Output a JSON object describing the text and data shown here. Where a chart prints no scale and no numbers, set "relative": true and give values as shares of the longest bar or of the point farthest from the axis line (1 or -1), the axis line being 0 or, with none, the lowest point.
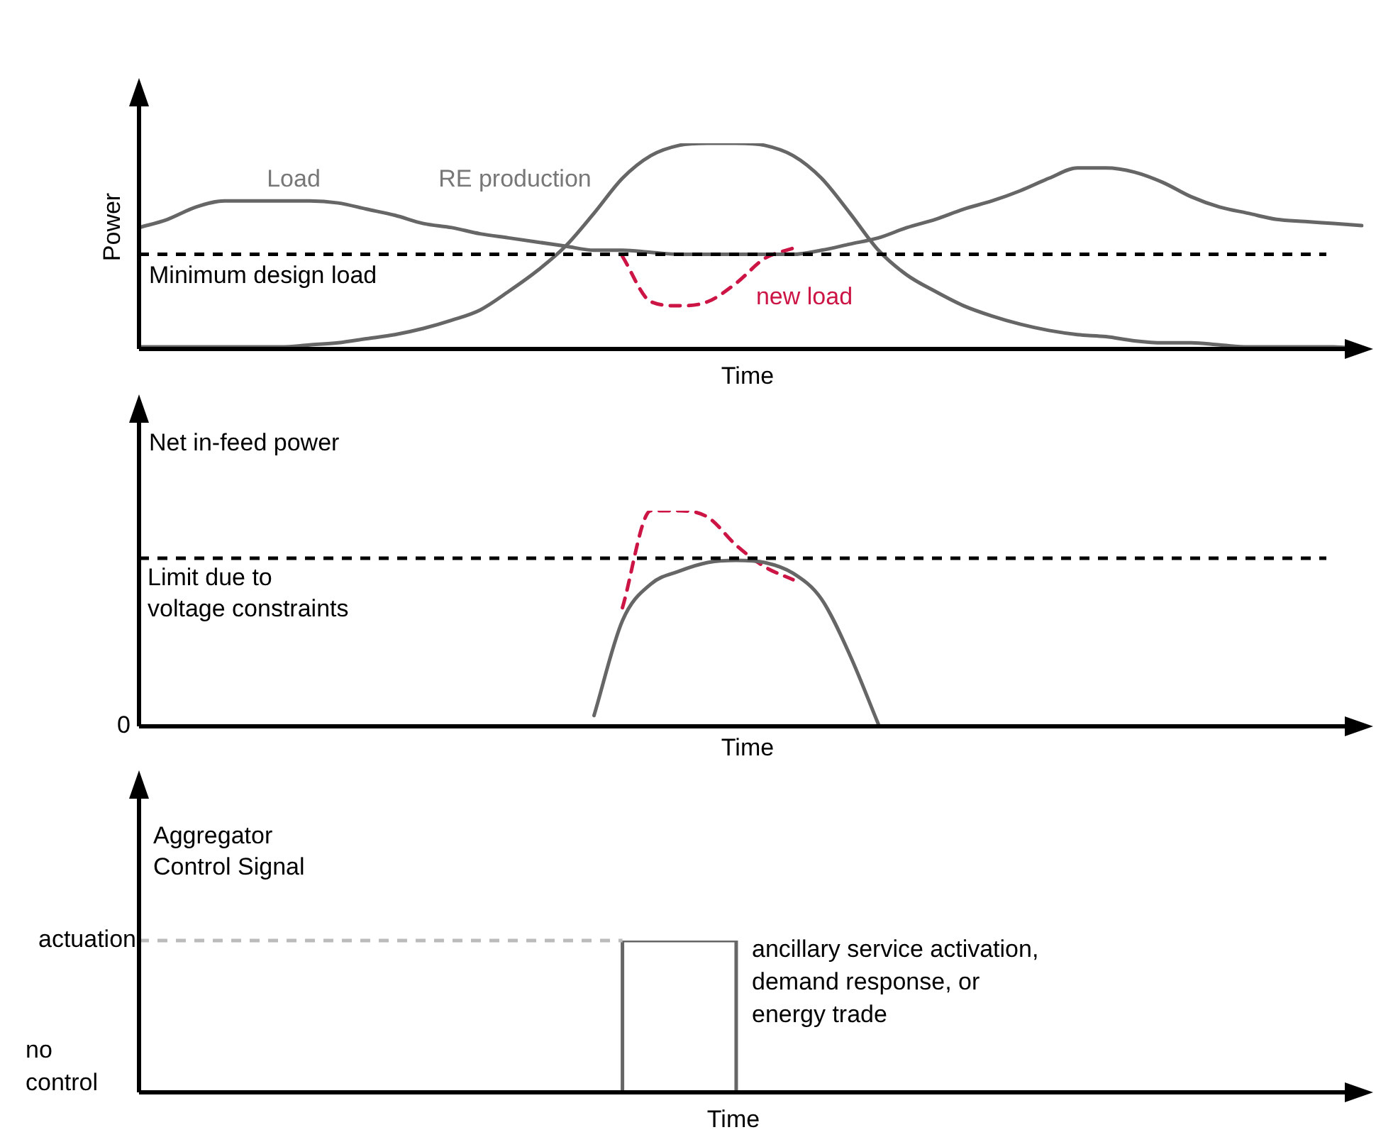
{
  "chart_data": [
    {
      "type": "line",
      "relative": true,
      "marker": "none",
      "xlabel": "Time",
      "ylabel": "Power",
      "categories": [
        null,
        null,
        null,
        null,
        null,
        null,
        null,
        null,
        null,
        null,
        null,
        null,
        null,
        null,
        null,
        null,
        null,
        null,
        null,
        null,
        null,
        null,
        null,
        null,
        null,
        null,
        null,
        null,
        null,
        null,
        null,
        null,
        null,
        null,
        null,
        null,
        null,
        null,
        null,
        null,
        null,
        null,
        null,
        null
      ],
      "series": [
        {
          "name": "Load",
          "color": "#666666",
          "values": [
            0.59,
            0.63,
            0.69,
            0.72,
            0.72,
            0.72,
            0.72,
            0.71,
            0.68,
            0.65,
            0.61,
            0.59,
            0.56,
            0.54,
            0.52,
            0.5,
            0.48,
            0.48,
            0.47,
            0.46,
            0.46,
            0.46,
            0.46,
            0.46,
            0.48,
            0.51,
            0.54,
            0.59,
            0.63,
            0.68,
            0.72,
            0.77,
            0.83,
            0.88,
            0.88,
            0.86,
            0.81,
            0.74,
            0.69,
            0.66,
            0.63,
            0.62,
            0.61,
            0.6
          ]
        },
        {
          "name": "RE production",
          "color": "#666666",
          "values": [
            0.01,
            0.01,
            0.01,
            0.01,
            0.01,
            0.01,
            0.02,
            0.03,
            0.05,
            0.07,
            0.1,
            0.14,
            0.19,
            0.28,
            0.38,
            0.5,
            0.66,
            0.83,
            0.94,
            0.99,
            1,
            1,
            0.99,
            0.94,
            0.83,
            0.66,
            0.48,
            0.36,
            0.28,
            0.21,
            0.16,
            0.12,
            0.09,
            0.07,
            0.06,
            0.04,
            0.03,
            0.03,
            0.02,
            0.01,
            0.01,
            0.01,
            0.01,
            0
          ]
        },
        {
          "name": "new load",
          "color": "#cc1445",
          "line_style": "dashed",
          "values": [
            null,
            null,
            null,
            null,
            null,
            null,
            null,
            null,
            null,
            null,
            null,
            null,
            null,
            null,
            null,
            null,
            null,
            0.45,
            0.23,
            0.21,
            0.23,
            0.32,
            0.44,
            0.49,
            null,
            null,
            null,
            null,
            null,
            null,
            null,
            null,
            null,
            null,
            null,
            null,
            null,
            null,
            null,
            null,
            null,
            null,
            null,
            null
          ]
        }
      ],
      "ref_lines": [
        {
          "axis": "y",
          "value": 0.46,
          "label": "Minimum design load",
          "color": "#000000",
          "line_style": "dashed"
        }
      ]
    },
    {
      "type": "line",
      "relative": true,
      "marker": "none",
      "xlabel": "Time",
      "ylabel": "Net in-feed power",
      "categories": [
        null,
        null,
        null,
        null,
        null,
        null,
        null,
        null,
        null,
        null,
        null,
        null,
        null,
        null,
        null,
        null,
        null,
        null,
        null,
        null,
        null,
        null,
        null,
        null,
        null,
        null,
        null,
        null,
        null,
        null,
        null,
        null,
        null,
        null,
        null,
        null,
        null,
        null,
        null,
        null,
        null,
        null,
        null,
        null
      ],
      "series": [
        {
          "color": "#666666",
          "values": [
            null,
            null,
            null,
            null,
            null,
            null,
            null,
            null,
            null,
            null,
            null,
            null,
            null,
            null,
            null,
            null,
            0.05,
            0.49,
            0.66,
            0.72,
            0.76,
            0.77,
            0.76,
            0.71,
            0.59,
            0.33,
            0.01,
            null,
            null,
            null,
            null,
            null,
            null,
            null,
            null,
            null,
            null,
            null,
            null,
            null,
            null,
            null,
            null,
            null
          ]
        },
        {
          "color": "#cc1445",
          "line_style": "dashed",
          "values": [
            null,
            null,
            null,
            null,
            null,
            null,
            null,
            null,
            null,
            null,
            null,
            null,
            null,
            null,
            null,
            null,
            null,
            0.55,
            1,
            1,
            0.97,
            0.84,
            0.74,
            0.68,
            null,
            null,
            null,
            null,
            null,
            null,
            null,
            null,
            null,
            null,
            null,
            null,
            null,
            null,
            null,
            null,
            null,
            null,
            null,
            null
          ]
        }
      ],
      "ref_lines": [
        {
          "axis": "y",
          "value": 0.78,
          "label": "Limit due to\nvoltage constraints",
          "color": "#000000",
          "line_style": "dashed"
        }
      ],
      "annotations": [
        "0"
      ]
    },
    {
      "type": "step",
      "relative": true,
      "marker": "none",
      "xlabel": "Time",
      "ylabel": "Aggregator\nControl Signal",
      "categories": [
        null,
        null,
        null,
        null,
        null,
        null,
        null,
        null,
        null,
        null,
        null,
        null,
        null,
        null,
        null,
        null,
        null,
        null,
        null,
        null,
        null,
        null,
        null,
        null,
        null,
        null,
        null,
        null,
        null,
        null,
        null,
        null,
        null,
        null,
        null,
        null,
        null,
        null,
        null,
        null,
        null,
        null,
        null,
        null
      ],
      "series": [
        {
          "color": "#666666",
          "values": [
            null,
            null,
            null,
            null,
            null,
            null,
            null,
            null,
            null,
            null,
            null,
            null,
            null,
            null,
            null,
            null,
            null,
            0,
            1,
            1,
            1,
            1,
            0,
            null,
            null,
            null,
            null,
            null,
            null,
            null,
            null,
            null,
            null,
            null,
            null,
            null,
            null,
            null,
            null,
            null,
            null,
            null,
            null,
            null
          ]
        }
      ],
      "ref_lines": [
        {
          "axis": "y",
          "value": 1,
          "color": "#bbbbbb",
          "line_style": "dashed"
        }
      ],
      "annotations": [
        "actuation",
        "no\ncontrol",
        "ancillary service activation,\ndemand response, or\nenergy trade"
      ]
    }
  ]
}
